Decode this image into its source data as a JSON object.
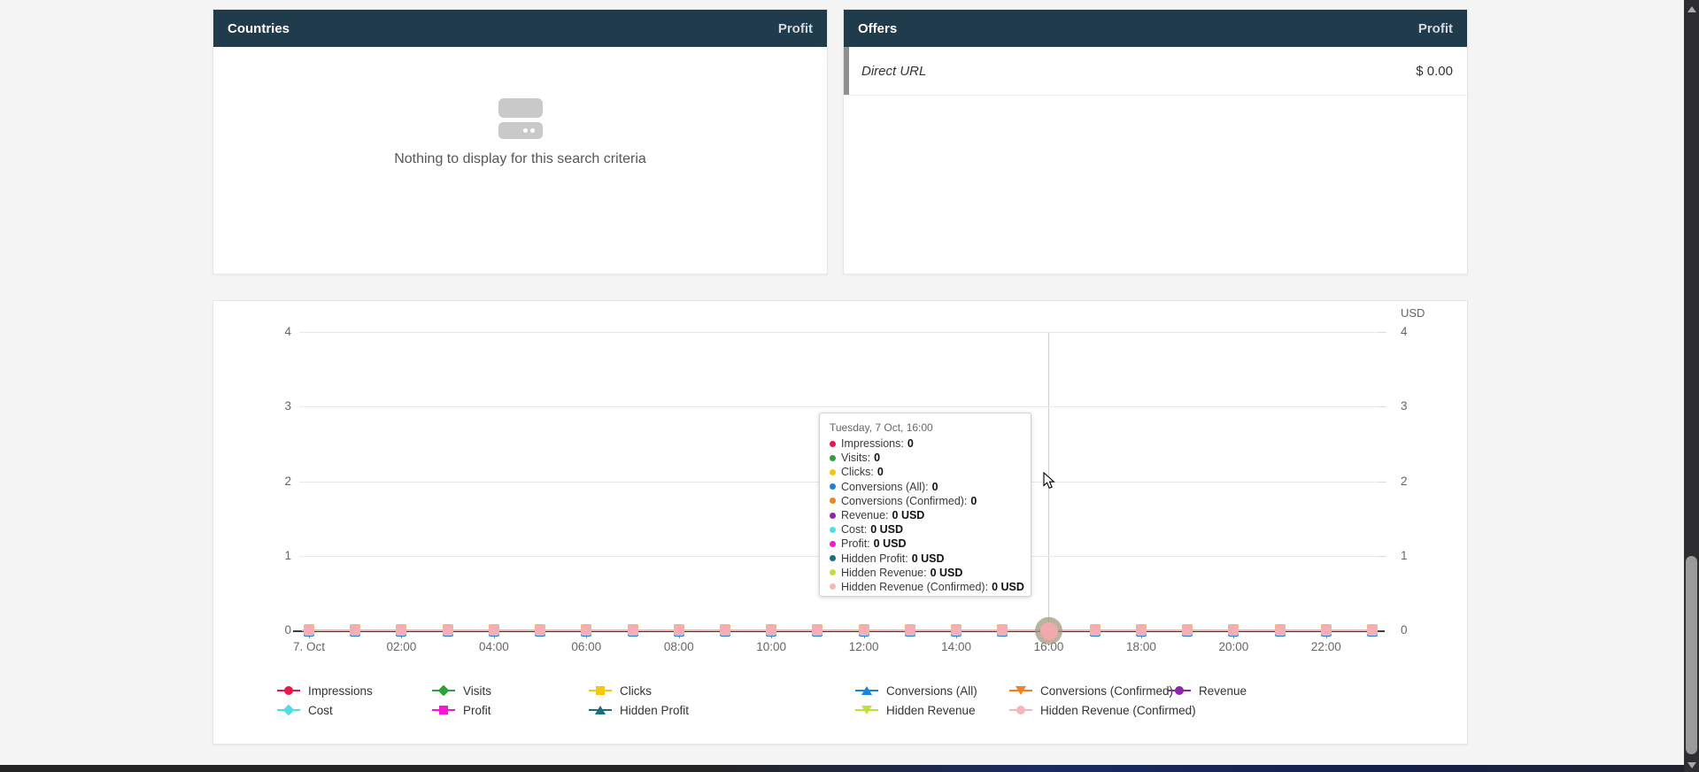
{
  "panels": {
    "countries": {
      "title": "Countries",
      "metric_label": "Profit",
      "empty_message": "Nothing to display for this search criteria",
      "empty_icon": "cards-stack-icon"
    },
    "offers": {
      "title": "Offers",
      "metric_label": "Profit",
      "rows": [
        {
          "name": "Direct URL",
          "profit": "$ 0.00"
        }
      ]
    }
  },
  "chart_data": {
    "type": "line",
    "unit_label": "USD",
    "ylim": [
      0,
      4
    ],
    "y_ticks": [
      0,
      1,
      2,
      3,
      4
    ],
    "grid": true,
    "legend_position": "bottom",
    "x_tick_labels": [
      "7. Oct",
      "02:00",
      "04:00",
      "06:00",
      "08:00",
      "10:00",
      "12:00",
      "14:00",
      "16:00",
      "18:00",
      "20:00",
      "22:00"
    ],
    "series": [
      {
        "name": "Impressions",
        "color": "#e8174c",
        "marker": "circle",
        "values": [
          0,
          0,
          0,
          0,
          0,
          0,
          0,
          0,
          0,
          0,
          0,
          0,
          0,
          0,
          0,
          0,
          0,
          0,
          0,
          0,
          0,
          0,
          0,
          0
        ]
      },
      {
        "name": "Visits",
        "color": "#2ca23c",
        "marker": "diamond",
        "values": [
          0,
          0,
          0,
          0,
          0,
          0,
          0,
          0,
          0,
          0,
          0,
          0,
          0,
          0,
          0,
          0,
          0,
          0,
          0,
          0,
          0,
          0,
          0,
          0
        ]
      },
      {
        "name": "Clicks",
        "color": "#f6c70b",
        "marker": "square",
        "values": [
          0,
          0,
          0,
          0,
          0,
          0,
          0,
          0,
          0,
          0,
          0,
          0,
          0,
          0,
          0,
          0,
          0,
          0,
          0,
          0,
          0,
          0,
          0,
          0
        ]
      },
      {
        "name": "Conversions (All)",
        "color": "#1a85d8",
        "marker": "triangle-up",
        "values": [
          0,
          0,
          0,
          0,
          0,
          0,
          0,
          0,
          0,
          0,
          0,
          0,
          0,
          0,
          0,
          0,
          0,
          0,
          0,
          0,
          0,
          0,
          0,
          0
        ]
      },
      {
        "name": "Conversions (Confirmed)",
        "color": "#f5801e",
        "marker": "triangle-down",
        "values": [
          0,
          0,
          0,
          0,
          0,
          0,
          0,
          0,
          0,
          0,
          0,
          0,
          0,
          0,
          0,
          0,
          0,
          0,
          0,
          0,
          0,
          0,
          0,
          0
        ]
      },
      {
        "name": "Revenue",
        "color": "#8e24aa",
        "marker": "circle",
        "values": [
          0,
          0,
          0,
          0,
          0,
          0,
          0,
          0,
          0,
          0,
          0,
          0,
          0,
          0,
          0,
          0,
          0,
          0,
          0,
          0,
          0,
          0,
          0,
          0
        ]
      },
      {
        "name": "Cost",
        "color": "#4ddfe8",
        "marker": "diamond",
        "values": [
          0,
          0,
          0,
          0,
          0,
          0,
          0,
          0,
          0,
          0,
          0,
          0,
          0,
          0,
          0,
          0,
          0,
          0,
          0,
          0,
          0,
          0,
          0,
          0
        ]
      },
      {
        "name": "Profit",
        "color": "#f517d8",
        "marker": "square",
        "values": [
          0,
          0,
          0,
          0,
          0,
          0,
          0,
          0,
          0,
          0,
          0,
          0,
          0,
          0,
          0,
          0,
          0,
          0,
          0,
          0,
          0,
          0,
          0,
          0
        ]
      },
      {
        "name": "Hidden Profit",
        "color": "#186f7c",
        "marker": "triangle-up",
        "values": [
          0,
          0,
          0,
          0,
          0,
          0,
          0,
          0,
          0,
          0,
          0,
          0,
          0,
          0,
          0,
          0,
          0,
          0,
          0,
          0,
          0,
          0,
          0,
          0
        ]
      },
      {
        "name": "Hidden Revenue",
        "color": "#bfdf3e",
        "marker": "triangle-down",
        "values": [
          0,
          0,
          0,
          0,
          0,
          0,
          0,
          0,
          0,
          0,
          0,
          0,
          0,
          0,
          0,
          0,
          0,
          0,
          0,
          0,
          0,
          0,
          0,
          0
        ]
      },
      {
        "name": "Hidden Revenue (Confirmed)",
        "color": "#f5b6ba",
        "marker": "circle",
        "values": [
          0,
          0,
          0,
          0,
          0,
          0,
          0,
          0,
          0,
          0,
          0,
          0,
          0,
          0,
          0,
          0,
          0,
          0,
          0,
          0,
          0,
          0,
          0,
          0
        ]
      }
    ],
    "hover": {
      "index": 16,
      "x_label": "16:00"
    }
  },
  "tooltip": {
    "title": "Tuesday, 7 Oct, 16:00",
    "items": [
      {
        "label": "Impressions",
        "value": "0",
        "color": "#e8174c"
      },
      {
        "label": "Visits",
        "value": "0",
        "color": "#2ca23c"
      },
      {
        "label": "Clicks",
        "value": "0",
        "color": "#f6c70b"
      },
      {
        "label": "Conversions (All)",
        "value": "0",
        "color": "#1a85d8"
      },
      {
        "label": "Conversions (Confirmed)",
        "value": "0",
        "color": "#f5801e"
      },
      {
        "label": "Revenue",
        "value": "0 USD",
        "color": "#8e24aa"
      },
      {
        "label": "Cost",
        "value": "0 USD",
        "color": "#4ddfe8"
      },
      {
        "label": "Profit",
        "value": "0 USD",
        "color": "#f517d8"
      },
      {
        "label": "Hidden Profit",
        "value": "0 USD",
        "color": "#186f7c"
      },
      {
        "label": "Hidden Revenue",
        "value": "0 USD",
        "color": "#bfdf3e"
      },
      {
        "label": "Hidden Revenue (Confirmed)",
        "value": "0 USD",
        "color": "#f5b6ba"
      }
    ]
  }
}
